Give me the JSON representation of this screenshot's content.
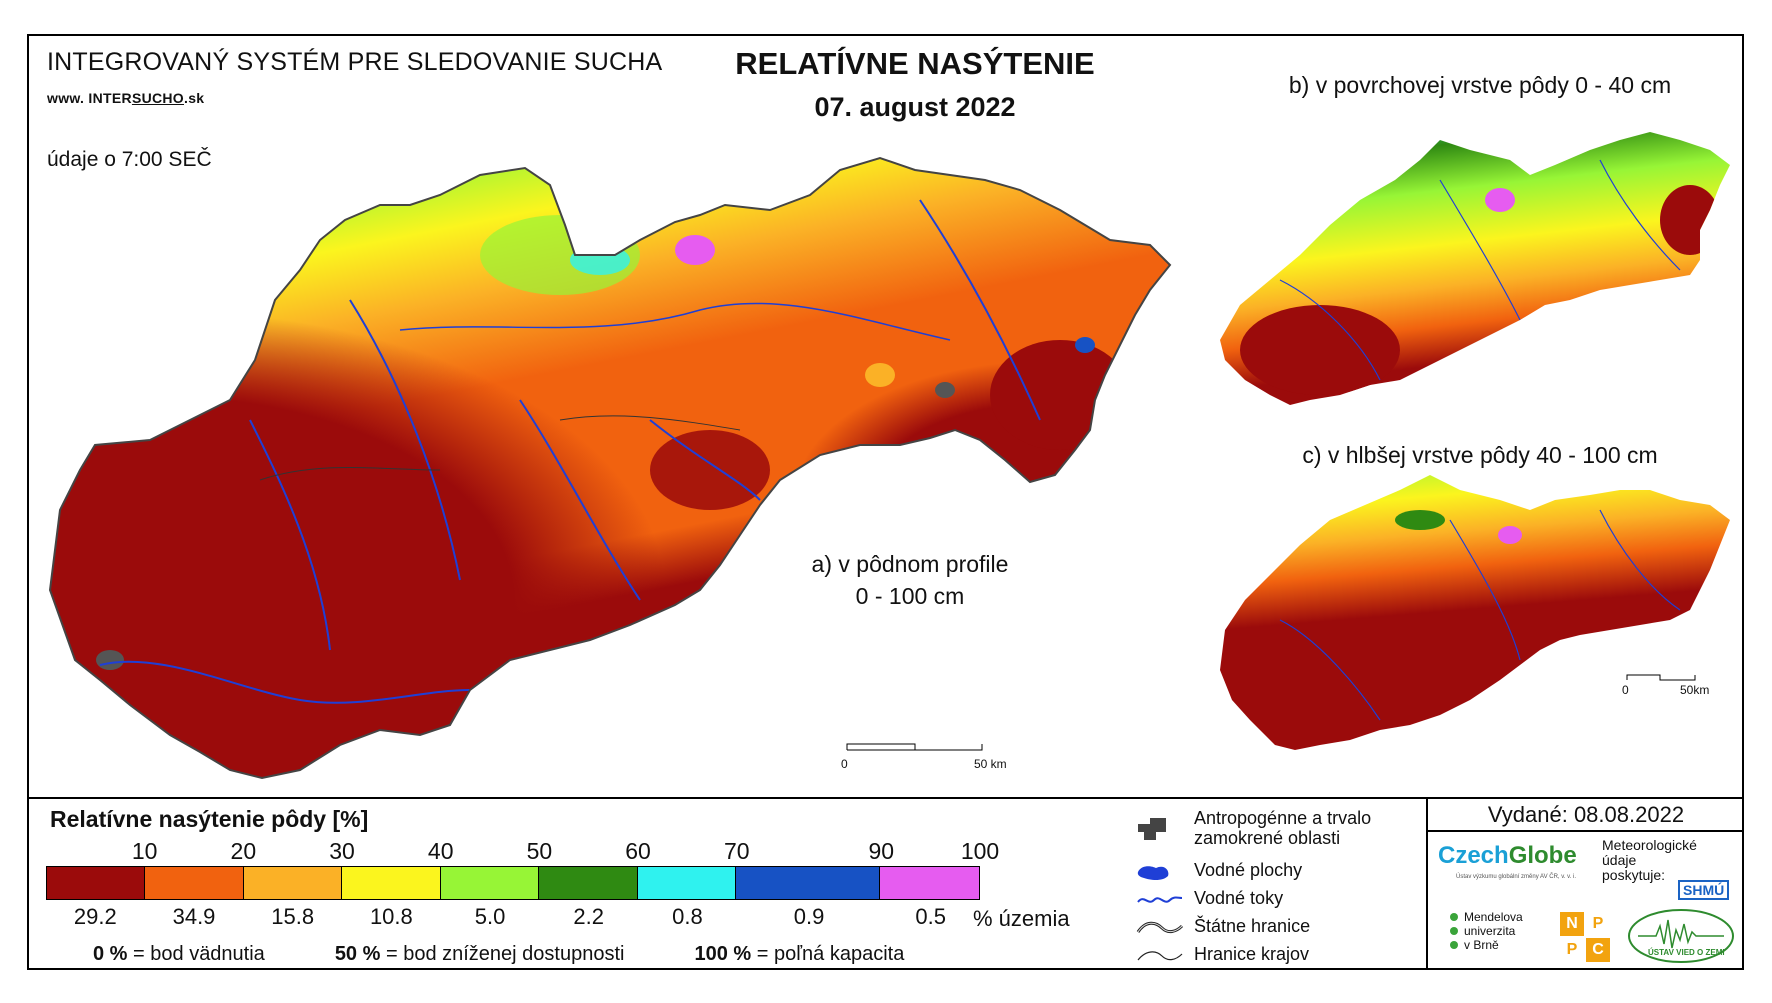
{
  "header": {
    "system_title": "INTEGROVANÝ SYSTÉM PRE SLEDOVANIE SUCHA",
    "website_prefix": "www. INTER",
    "website_underlined": "SUCHO",
    "website_suffix": ".sk",
    "data_time": "údaje o 7:00 SEČ",
    "title": "RELATÍVNE NASÝTENIE",
    "date": "07. august 2022"
  },
  "maps": {
    "a_label_line1": "a) v pôdnom profile",
    "a_label_line2": "0 - 100 cm",
    "b_label": "b) v povrchovej vrstve pôdy 0 - 40 cm",
    "c_label": "c) v hlbšej vrstve pôdy 40 - 100 cm",
    "scale_a": {
      "start": "0",
      "end": "50 km"
    },
    "scale_c": {
      "start": "0",
      "end": "50km"
    }
  },
  "legend": {
    "title": "Relatívne nasýtenie pôdy [%]",
    "ticks": [
      "10",
      "20",
      "30",
      "40",
      "50",
      "60",
      "70",
      "90",
      "100"
    ],
    "classes": [
      {
        "color": "#9b0b0b",
        "percent": "29.2"
      },
      {
        "color": "#f1620f",
        "percent": "34.9"
      },
      {
        "color": "#fbb126",
        "percent": "15.8"
      },
      {
        "color": "#fbf51e",
        "percent": "10.8"
      },
      {
        "color": "#97f536",
        "percent": "5.0"
      },
      {
        "color": "#2f8a12",
        "percent": "2.2"
      },
      {
        "color": "#2ff2ef",
        "percent": "0.8"
      },
      {
        "color": "#1752c4",
        "percent": "0.9"
      },
      {
        "color": "#e65cf0",
        "percent": "0.5"
      }
    ],
    "percent_unit": "% územia",
    "footnotes": [
      {
        "bold": "0 %",
        "text": " = bod vädnutia"
      },
      {
        "bold": "50 %",
        "text": " = bod zníženej dostupnosti"
      },
      {
        "bold": "100 %",
        "text": " = poľná kapacita"
      }
    ]
  },
  "symbols": {
    "anthropogenic": "Antropogénne a trvalo zamokrené oblasti",
    "water_bodies": "Vodné plochy",
    "rivers": "Vodné toky",
    "state_border": "Štátne hranice",
    "region_border": "Hranice krajov"
  },
  "issued": "Vydané: 08.08.2022",
  "logos": {
    "czechglobe_a": "Czech",
    "czechglobe_b": "Globe",
    "czechglobe_sub": "Ústav výzkumu globální změny AV ČR, v. v. i.",
    "meteo_text": "Meteorologické údaje poskytuje:",
    "shmu": "SHMÚ",
    "mendel_1": "Mendelova",
    "mendel_2": "univerzita",
    "mendel_3": "v Brně",
    "nppc": [
      "N",
      "P",
      "P",
      "C"
    ],
    "uvz": "ÚSTAV VIED O ZEMI"
  },
  "colors": {
    "dark_red": "#9b0b0b",
    "orange": "#f1620f",
    "light_orange": "#fbb126",
    "yellow": "#fbf51e",
    "light_green": "#97f536",
    "green": "#2f8a12",
    "cyan": "#2ff2ef",
    "blue": "#1752c4",
    "magenta": "#e65cf0",
    "river": "#1f3fd6"
  }
}
